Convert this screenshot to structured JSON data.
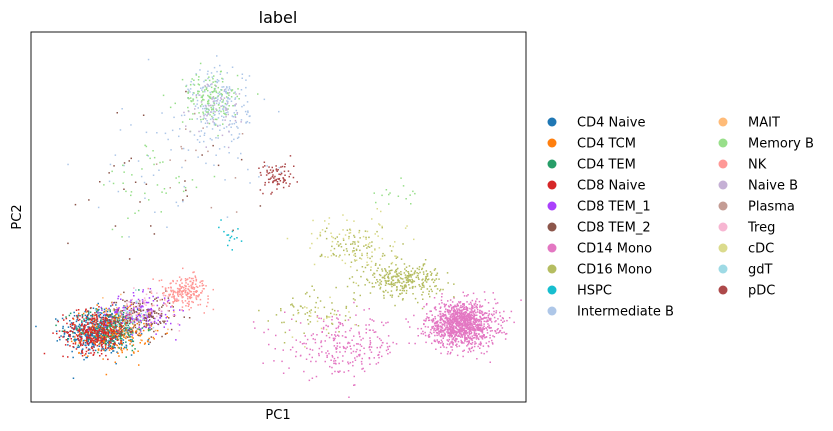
{
  "chart_data": {
    "type": "scatter",
    "title": "label",
    "xlabel": "PC1",
    "ylabel": "PC2",
    "xlim": [
      0,
      100
    ],
    "ylim": [
      0,
      100
    ],
    "grid": false,
    "ticks": false,
    "legend_placement": "right",
    "legend_columns": 2,
    "series": [
      {
        "name": "CD4 Naive",
        "color": "#1f77b4",
        "clusters": [
          {
            "cx": 14,
            "cy": 19,
            "sx": 3.5,
            "sy": 3.0,
            "n": 500
          }
        ]
      },
      {
        "name": "CD4 TCM",
        "color": "#ff7f0e",
        "clusters": [
          {
            "cx": 17,
            "cy": 19,
            "sx": 3.5,
            "sy": 3.0,
            "n": 300
          }
        ]
      },
      {
        "name": "CD4 TEM",
        "color": "#279e68",
        "clusters": [
          {
            "cx": 16,
            "cy": 20,
            "sx": 3.5,
            "sy": 3.0,
            "n": 200
          }
        ]
      },
      {
        "name": "CD8 Naive",
        "color": "#d62728",
        "clusters": [
          {
            "cx": 13,
            "cy": 19,
            "sx": 3.2,
            "sy": 2.8,
            "n": 350
          }
        ]
      },
      {
        "name": "CD8 TEM_1",
        "color": "#aa40fc",
        "clusters": [
          {
            "cx": 22,
            "cy": 24,
            "sx": 3.5,
            "sy": 2.5,
            "n": 180
          }
        ]
      },
      {
        "name": "CD8 TEM_2",
        "color": "#8c564b",
        "clusters": [
          {
            "cx": 22,
            "cy": 23,
            "sx": 3.5,
            "sy": 2.8,
            "n": 150
          },
          {
            "cx": 25,
            "cy": 60,
            "sx": 10,
            "sy": 10,
            "n": 30
          }
        ]
      },
      {
        "name": "CD14 Mono",
        "color": "#e377c2",
        "clusters": [
          {
            "cx": 87,
            "cy": 21,
            "sx": 3.5,
            "sy": 3.0,
            "n": 1200
          },
          {
            "cx": 63,
            "cy": 15,
            "sx": 6.0,
            "sy": 4.0,
            "n": 250
          }
        ]
      },
      {
        "name": "CD16 Mono",
        "color": "#b5bd61",
        "clusters": [
          {
            "cx": 75,
            "cy": 33,
            "sx": 4.0,
            "sy": 2.2,
            "n": 300
          },
          {
            "cx": 66,
            "cy": 42,
            "sx": 3.5,
            "sy": 3.0,
            "n": 80
          },
          {
            "cx": 57,
            "cy": 24,
            "sx": 4.5,
            "sy": 3.0,
            "n": 60
          }
        ]
      },
      {
        "name": "HSPC",
        "color": "#17becf",
        "clusters": [
          {
            "cx": 40,
            "cy": 45,
            "sx": 1.5,
            "sy": 2.5,
            "n": 15
          }
        ]
      },
      {
        "name": "Intermediate B",
        "color": "#aec7e8",
        "clusters": [
          {
            "cx": 38,
            "cy": 80,
            "sx": 3.0,
            "sy": 5.0,
            "n": 220
          },
          {
            "cx": 30,
            "cy": 65,
            "sx": 10,
            "sy": 10,
            "n": 60
          }
        ]
      },
      {
        "name": "MAIT",
        "color": "#ffbb78",
        "clusters": [
          {
            "cx": 20,
            "cy": 23,
            "sx": 3.0,
            "sy": 2.5,
            "n": 40
          }
        ]
      },
      {
        "name": "Memory B",
        "color": "#98df8a",
        "clusters": [
          {
            "cx": 36,
            "cy": 82,
            "sx": 3.0,
            "sy": 3.5,
            "n": 150
          },
          {
            "cx": 25,
            "cy": 58,
            "sx": 5.0,
            "sy": 6.0,
            "n": 40
          },
          {
            "cx": 74,
            "cy": 55,
            "sx": 3.0,
            "sy": 3.0,
            "n": 15
          }
        ]
      },
      {
        "name": "NK",
        "color": "#ff9896",
        "clusters": [
          {
            "cx": 31,
            "cy": 30,
            "sx": 2.5,
            "sy": 2.0,
            "n": 220
          }
        ]
      },
      {
        "name": "Naive B",
        "color": "#c5b0d5",
        "clusters": [
          {
            "cx": 38,
            "cy": 80,
            "sx": 3.0,
            "sy": 4.0,
            "n": 60
          }
        ]
      },
      {
        "name": "Plasma",
        "color": "#c49c94",
        "clusters": [
          {
            "cx": 32,
            "cy": 65,
            "sx": 5.0,
            "sy": 5.0,
            "n": 15
          }
        ]
      },
      {
        "name": "Treg",
        "color": "#f7b6d2",
        "clusters": [
          {
            "cx": 24,
            "cy": 26,
            "sx": 3.0,
            "sy": 2.5,
            "n": 40
          }
        ]
      },
      {
        "name": "cDC",
        "color": "#dbdb8d",
        "clusters": [
          {
            "cx": 65,
            "cy": 43,
            "sx": 5.0,
            "sy": 4.0,
            "n": 80
          },
          {
            "cx": 57,
            "cy": 23,
            "sx": 4.0,
            "sy": 3.0,
            "n": 20
          }
        ]
      },
      {
        "name": "gdT",
        "color": "#9edae5",
        "clusters": [
          {
            "cx": 19,
            "cy": 22,
            "sx": 3.0,
            "sy": 2.5,
            "n": 40
          }
        ]
      },
      {
        "name": "pDC",
        "color": "#ad494a",
        "clusters": [
          {
            "cx": 50,
            "cy": 61,
            "sx": 1.8,
            "sy": 2.0,
            "n": 80
          }
        ]
      }
    ]
  }
}
